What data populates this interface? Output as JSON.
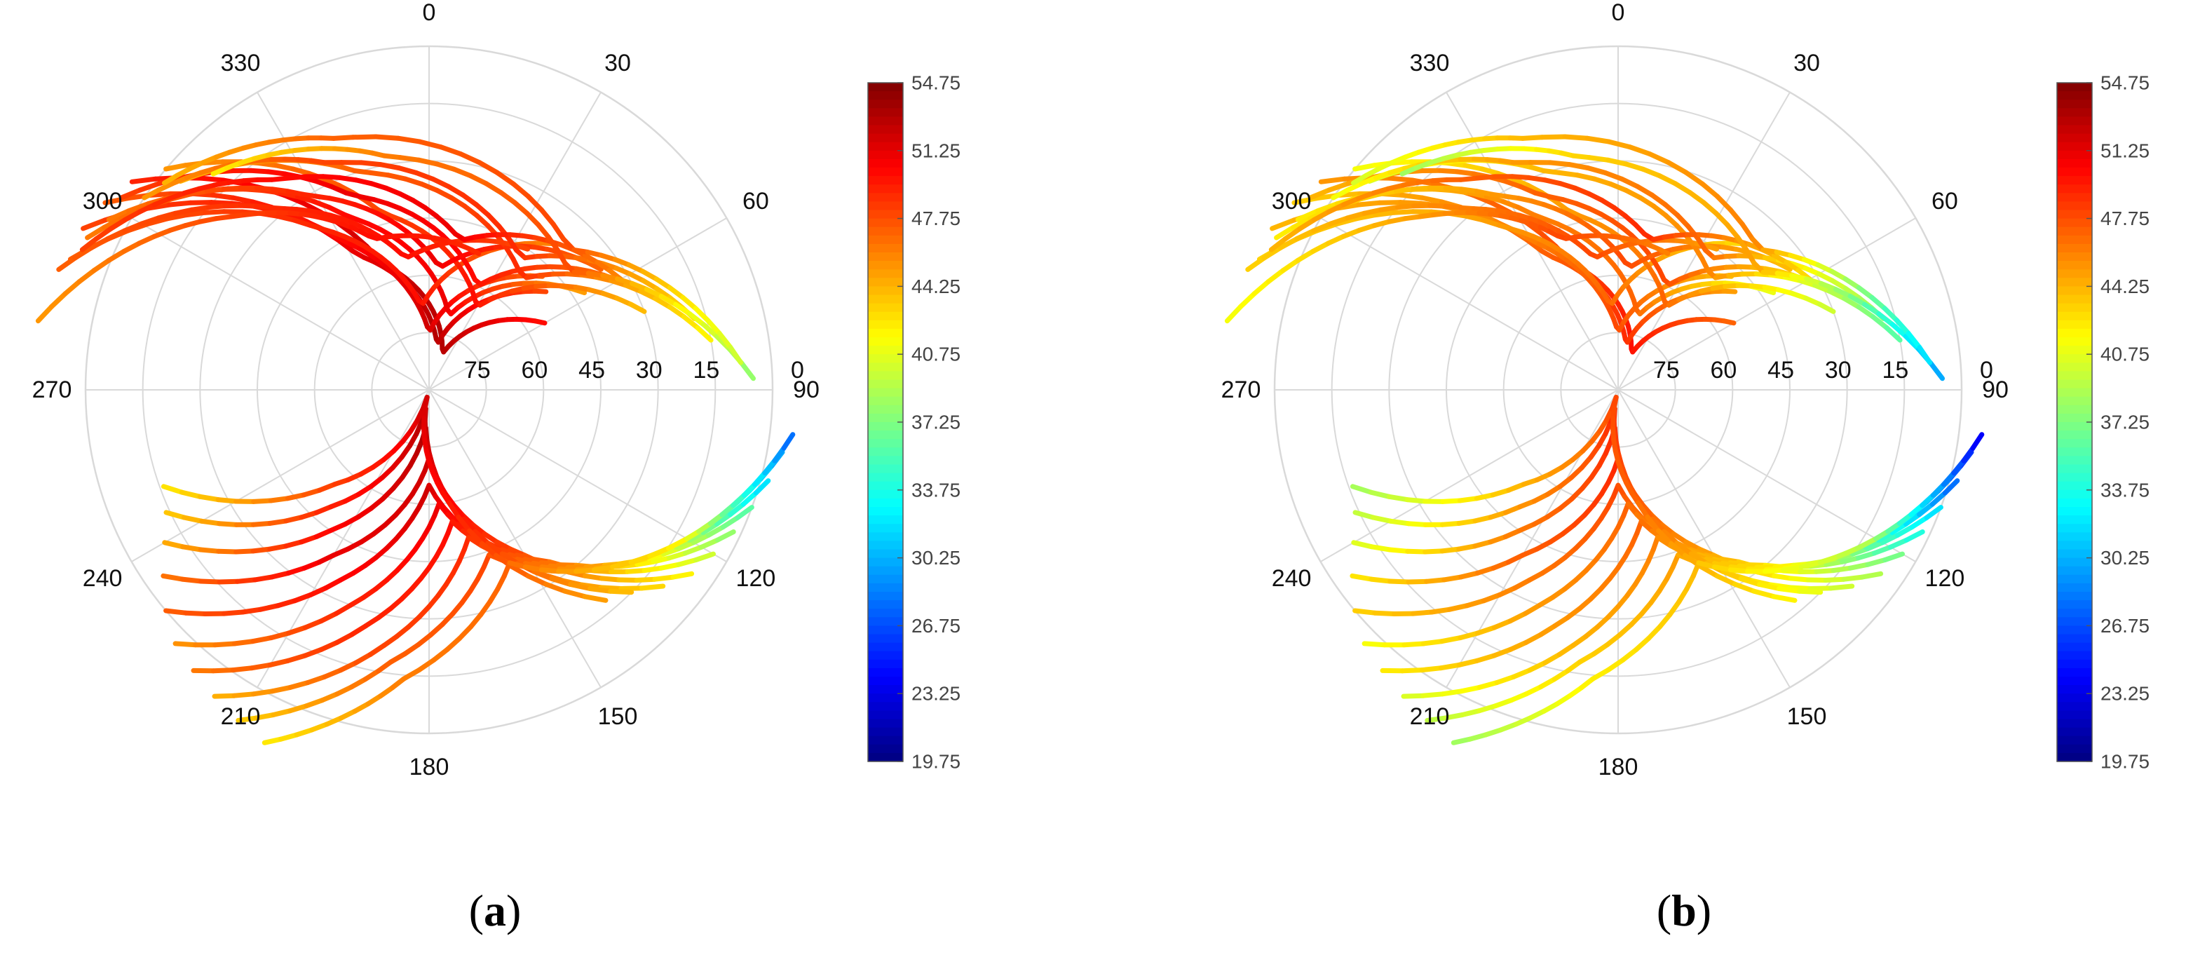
{
  "chart_data": [
    {
      "type": "scatter",
      "panel_label": {
        "open": "(",
        "letter": "a",
        "close": ")"
      },
      "azimuth_ticks": [
        "0",
        "30",
        "60",
        "90",
        "120",
        "150",
        "180",
        "210",
        "240",
        "270",
        "300",
        "330"
      ],
      "elevation_ticks": [
        "0",
        "15",
        "30",
        "45",
        "60",
        "75"
      ],
      "elevation_ticks_angle_deg": 90,
      "grid": true,
      "colorbar": {
        "colormap": "jet",
        "range": [
          19.75,
          54.75
        ],
        "ticks": [
          "54.75",
          "51.25",
          "47.75",
          "44.25",
          "40.75",
          "37.25",
          "33.75",
          "30.25",
          "26.75",
          "23.25",
          "19.75"
        ],
        "position": "right"
      },
      "series": [
        {
          "az": [
            -55,
            -20,
            20,
            60
          ],
          "el": [
            -5,
            55,
            80,
            55
          ],
          "c": [
            49,
            52,
            53,
            50
          ]
        },
        {
          "az": [
            -60,
            -28,
            10,
            50
          ],
          "el": [
            -8,
            50,
            78,
            50
          ],
          "c": [
            47,
            51,
            53,
            48
          ]
        },
        {
          "az": [
            -65,
            -30,
            0,
            45
          ],
          "el": [
            -10,
            45,
            75,
            48
          ],
          "c": [
            48,
            50,
            52,
            47
          ]
        },
        {
          "az": [
            -62,
            -25,
            15,
            58
          ],
          "el": [
            -5,
            40,
            70,
            42
          ],
          "c": [
            46,
            50,
            51,
            45
          ]
        },
        {
          "az": [
            -70,
            -35,
            -5,
            40
          ],
          "el": [
            -10,
            38,
            68,
            40
          ],
          "c": [
            47,
            49,
            50,
            46
          ]
        },
        {
          "az": [
            -50,
            -15,
            30,
            70
          ],
          "el": [
            0,
            42,
            65,
            30
          ],
          "c": [
            45,
            48,
            50,
            44
          ]
        },
        {
          "az": [
            -58,
            -22,
            25,
            66
          ],
          "el": [
            -5,
            35,
            60,
            28
          ],
          "c": [
            48,
            51,
            50,
            46
          ]
        },
        {
          "az": [
            -66,
            -32,
            5,
            55
          ],
          "el": [
            -8,
            30,
            58,
            35
          ],
          "c": [
            46,
            49,
            51,
            47
          ]
        },
        {
          "az": [
            -50,
            -18,
            40,
            80
          ],
          "el": [
            5,
            30,
            52,
            15
          ],
          "c": [
            44,
            47,
            49,
            42
          ]
        },
        {
          "az": [
            -72,
            -40,
            -10,
            35
          ],
          "el": [
            -12,
            28,
            55,
            45
          ],
          "c": [
            47,
            49,
            50,
            48
          ]
        },
        {
          "az": [
            -56,
            -24,
            35,
            75
          ],
          "el": [
            0,
            25,
            48,
            18
          ],
          "c": [
            45,
            48,
            49,
            43
          ]
        },
        {
          "az": [
            -68,
            -36,
            12,
            60
          ],
          "el": [
            -8,
            22,
            50,
            32
          ],
          "c": [
            48,
            50,
            51,
            46
          ]
        },
        {
          "az": [
            -45,
            -10,
            50,
            88
          ],
          "el": [
            10,
            28,
            42,
            5
          ],
          "c": [
            42,
            46,
            48,
            38
          ]
        },
        {
          "az": [
            -80,
            -48,
            -20,
            20
          ],
          "el": [
            -14,
            22,
            48,
            52
          ],
          "c": [
            45,
            48,
            50,
            49
          ]
        },
        {
          "az": [
            -52,
            -20,
            45,
            85
          ],
          "el": [
            2,
            20,
            38,
            8
          ],
          "c": [
            44,
            47,
            48,
            40
          ]
        },
        {
          "az": [
            -120,
            -145,
            -175,
            160,
            130
          ],
          "el": [
            10,
            45,
            80,
            48,
            10
          ],
          "c": [
            44,
            50,
            53,
            49,
            43
          ]
        },
        {
          "az": [
            -125,
            -150,
            180,
            150,
            125
          ],
          "el": [
            5,
            40,
            72,
            40,
            6
          ],
          "c": [
            46,
            51,
            52,
            48,
            42
          ]
        },
        {
          "az": [
            -130,
            -155,
            -180,
            145,
            120
          ],
          "el": [
            0,
            35,
            65,
            35,
            4
          ],
          "c": [
            47,
            50,
            52,
            47,
            40
          ]
        },
        {
          "az": [
            -135,
            -160,
            175,
            140,
            115
          ],
          "el": [
            -4,
            30,
            60,
            30,
            2
          ],
          "c": [
            45,
            49,
            51,
            46,
            38
          ]
        },
        {
          "az": [
            -140,
            -165,
            170,
            135,
            110
          ],
          "el": [
            -6,
            26,
            55,
            25,
            0
          ],
          "c": [
            46,
            49,
            50,
            45,
            36
          ]
        },
        {
          "az": [
            -145,
            -170,
            165,
            130,
            105
          ],
          "el": [
            -8,
            22,
            50,
            20,
            -2
          ],
          "c": [
            44,
            48,
            49,
            44,
            32
          ]
        },
        {
          "az": [
            -150,
            -172,
            160,
            125,
            100
          ],
          "el": [
            -10,
            18,
            44,
            16,
            -4
          ],
          "c": [
            43,
            47,
            48,
            43,
            30
          ]
        },
        {
          "az": [
            -115,
            -140,
            -170,
            165,
            135
          ],
          "el": [
            14,
            50,
            85,
            55,
            15
          ],
          "c": [
            43,
            49,
            53,
            50,
            44
          ]
        },
        {
          "az": [
            -110,
            -135,
            -165,
            170,
            140
          ],
          "el": [
            16,
            55,
            88,
            60,
            18
          ],
          "c": [
            42,
            48,
            52,
            50,
            45
          ]
        },
        {
          "az": [
            -155,
            -175,
            155,
            120,
            97
          ],
          "el": [
            -12,
            14,
            40,
            12,
            -6
          ],
          "c": [
            42,
            46,
            47,
            42,
            28
          ]
        }
      ]
    },
    {
      "type": "scatter",
      "panel_label": {
        "open": "(",
        "letter": "b",
        "close": ")"
      },
      "azimuth_ticks": [
        "0",
        "30",
        "60",
        "90",
        "120",
        "150",
        "180",
        "210",
        "240",
        "270",
        "300",
        "330"
      ],
      "elevation_ticks": [
        "0",
        "15",
        "30",
        "45",
        "60",
        "75"
      ],
      "elevation_ticks_angle_deg": 90,
      "grid": true,
      "colorbar": {
        "colormap": "jet",
        "range": [
          19.75,
          54.75
        ],
        "ticks": [
          "54.75",
          "51.25",
          "47.75",
          "44.25",
          "40.75",
          "37.25",
          "33.75",
          "30.25",
          "26.75",
          "23.25",
          "19.75"
        ],
        "position": "right"
      },
      "series": [
        {
          "az": [
            -55,
            -20,
            20,
            60
          ],
          "el": [
            -5,
            55,
            80,
            55
          ],
          "c": [
            45,
            48,
            50,
            47
          ]
        },
        {
          "az": [
            -60,
            -28,
            10,
            50
          ],
          "el": [
            -8,
            50,
            78,
            50
          ],
          "c": [
            43,
            47,
            49,
            45
          ]
        },
        {
          "az": [
            -65,
            -30,
            0,
            45
          ],
          "el": [
            -10,
            45,
            75,
            48
          ],
          "c": [
            44,
            46,
            48,
            44
          ]
        },
        {
          "az": [
            -62,
            -25,
            15,
            58
          ],
          "el": [
            -5,
            40,
            70,
            42
          ],
          "c": [
            42,
            46,
            47,
            41
          ]
        },
        {
          "az": [
            -70,
            -35,
            -5,
            40
          ],
          "el": [
            -10,
            38,
            68,
            40
          ],
          "c": [
            43,
            45,
            47,
            43
          ]
        },
        {
          "az": [
            -50,
            -15,
            30,
            70
          ],
          "el": [
            0,
            42,
            65,
            30
          ],
          "c": [
            41,
            45,
            47,
            40
          ]
        },
        {
          "az": [
            -58,
            -22,
            25,
            66
          ],
          "el": [
            -5,
            35,
            60,
            28
          ],
          "c": [
            44,
            47,
            48,
            42
          ]
        },
        {
          "az": [
            -66,
            -32,
            5,
            55
          ],
          "el": [
            -8,
            30,
            58,
            35
          ],
          "c": [
            42,
            45,
            48,
            44
          ]
        },
        {
          "az": [
            -50,
            -18,
            40,
            80
          ],
          "el": [
            5,
            30,
            52,
            15
          ],
          "c": [
            40,
            44,
            46,
            36
          ]
        },
        {
          "az": [
            -72,
            -40,
            -10,
            35
          ],
          "el": [
            -12,
            28,
            55,
            45
          ],
          "c": [
            43,
            46,
            48,
            45
          ]
        },
        {
          "az": [
            -56,
            -24,
            35,
            75
          ],
          "el": [
            0,
            25,
            48,
            18
          ],
          "c": [
            41,
            45,
            47,
            38
          ]
        },
        {
          "az": [
            -68,
            -36,
            12,
            60
          ],
          "el": [
            -8,
            22,
            50,
            32
          ],
          "c": [
            44,
            47,
            49,
            43
          ]
        },
        {
          "az": [
            -45,
            -10,
            50,
            88
          ],
          "el": [
            10,
            28,
            42,
            5
          ],
          "c": [
            38,
            43,
            45,
            30
          ]
        },
        {
          "az": [
            -80,
            -48,
            -20,
            20
          ],
          "el": [
            -14,
            22,
            48,
            52
          ],
          "c": [
            41,
            45,
            48,
            46
          ]
        },
        {
          "az": [
            -52,
            -20,
            45,
            85
          ],
          "el": [
            2,
            20,
            38,
            8
          ],
          "c": [
            40,
            44,
            46,
            32
          ]
        },
        {
          "az": [
            -120,
            -145,
            -175,
            160,
            130
          ],
          "el": [
            10,
            45,
            80,
            48,
            10
          ],
          "c": [
            40,
            46,
            49,
            46,
            40
          ]
        },
        {
          "az": [
            -125,
            -150,
            180,
            150,
            125
          ],
          "el": [
            5,
            40,
            72,
            40,
            6
          ],
          "c": [
            42,
            47,
            49,
            45,
            39
          ]
        },
        {
          "az": [
            -130,
            -155,
            -180,
            145,
            120
          ],
          "el": [
            0,
            35,
            65,
            35,
            4
          ],
          "c": [
            43,
            46,
            48,
            44,
            37
          ]
        },
        {
          "az": [
            -135,
            -160,
            175,
            140,
            115
          ],
          "el": [
            -4,
            30,
            60,
            30,
            2
          ],
          "c": [
            41,
            45,
            47,
            43,
            34
          ]
        },
        {
          "az": [
            -140,
            -165,
            170,
            135,
            110
          ],
          "el": [
            -6,
            26,
            55,
            25,
            0
          ],
          "c": [
            42,
            45,
            47,
            42,
            32
          ]
        },
        {
          "az": [
            -145,
            -170,
            165,
            130,
            105
          ],
          "el": [
            -8,
            22,
            50,
            20,
            -2
          ],
          "c": [
            40,
            44,
            46,
            41,
            28
          ]
        },
        {
          "az": [
            -150,
            -172,
            160,
            125,
            100
          ],
          "el": [
            -10,
            18,
            44,
            16,
            -4
          ],
          "c": [
            39,
            43,
            45,
            40,
            26
          ]
        },
        {
          "az": [
            -115,
            -140,
            -170,
            165,
            135
          ],
          "el": [
            14,
            50,
            85,
            55,
            15
          ],
          "c": [
            39,
            45,
            49,
            47,
            41
          ]
        },
        {
          "az": [
            -110,
            -135,
            -165,
            170,
            140
          ],
          "el": [
            16,
            55,
            88,
            60,
            18
          ],
          "c": [
            38,
            44,
            48,
            47,
            42
          ]
        },
        {
          "az": [
            -155,
            -175,
            155,
            120,
            97
          ],
          "el": [
            -12,
            14,
            40,
            12,
            -6
          ],
          "c": [
            38,
            42,
            44,
            39,
            24
          ]
        }
      ]
    }
  ]
}
